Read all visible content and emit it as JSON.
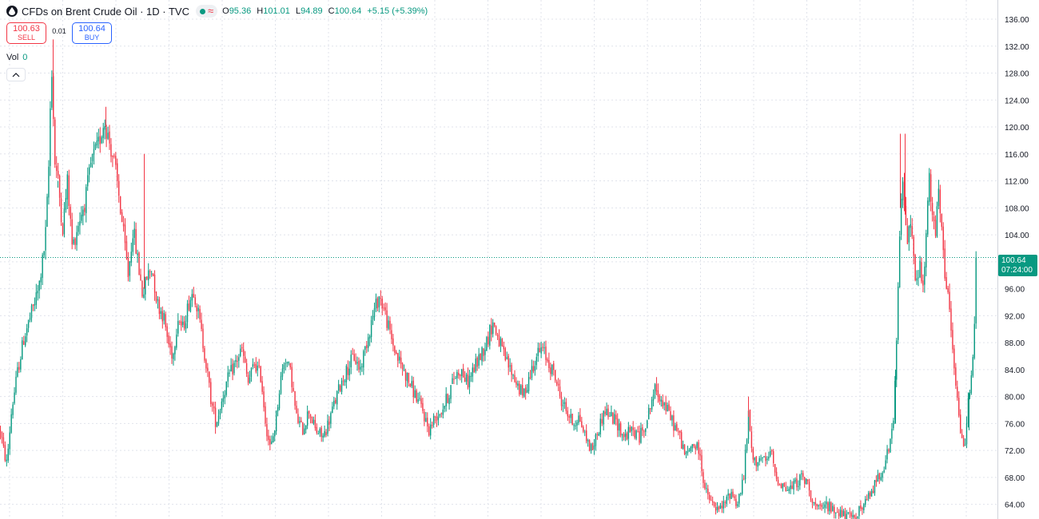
{
  "header": {
    "symbol": "CFDs on Brent Crude Oil · 1D · TVC",
    "ohlc": {
      "o_label": "O",
      "o": "95.36",
      "h_label": "H",
      "h": "101.01",
      "l_label": "L",
      "l": "94.89",
      "c_label": "C",
      "c": "100.64",
      "change": "+5.15 (+5.39%)"
    }
  },
  "trade": {
    "sell_price": "100.63",
    "sell_label": "SELL",
    "spread": "0.01",
    "buy_price": "100.64",
    "buy_label": "BUY"
  },
  "volume": {
    "label": "Vol",
    "value": "0"
  },
  "last_price": {
    "value": "100.64",
    "countdown": "07:24:00"
  },
  "colors": {
    "up": "#089981",
    "down": "#f23645",
    "grid": "#e0e3eb",
    "price_line": "#089981"
  },
  "chart_data": {
    "type": "candlestick",
    "ylim": [
      62,
      138
    ],
    "y_ticks": [
      "64.00",
      "68.00",
      "72.00",
      "76.00",
      "80.00",
      "84.00",
      "88.00",
      "92.00",
      "96.00",
      "100.00",
      "104.00",
      "108.00",
      "112.00",
      "116.00",
      "120.00",
      "124.00",
      "128.00",
      "132.00",
      "136.00"
    ],
    "last_close": 100.64,
    "close_path": [
      [
        0,
        75
      ],
      [
        4,
        72
      ],
      [
        8,
        70
      ],
      [
        14,
        78
      ],
      [
        22,
        84
      ],
      [
        30,
        89
      ],
      [
        38,
        92
      ],
      [
        48,
        96
      ],
      [
        56,
        103
      ],
      [
        60,
        112
      ],
      [
        64,
        130
      ],
      [
        68,
        115
      ],
      [
        72,
        112
      ],
      [
        78,
        105
      ],
      [
        84,
        112
      ],
      [
        90,
        102
      ],
      [
        98,
        106
      ],
      [
        106,
        109
      ],
      [
        114,
        115
      ],
      [
        122,
        117
      ],
      [
        130,
        121
      ],
      [
        136,
        118
      ],
      [
        142,
        115
      ],
      [
        148,
        110
      ],
      [
        154,
        104
      ],
      [
        160,
        98
      ],
      [
        166,
        105
      ],
      [
        172,
        100
      ],
      [
        178,
        95
      ],
      [
        184,
        98
      ],
      [
        190,
        99
      ],
      [
        196,
        94
      ],
      [
        204,
        92
      ],
      [
        210,
        88
      ],
      [
        216,
        86
      ],
      [
        222,
        92
      ],
      [
        228,
        90
      ],
      [
        236,
        94
      ],
      [
        242,
        96
      ],
      [
        248,
        92
      ],
      [
        256,
        86
      ],
      [
        264,
        79
      ],
      [
        270,
        76
      ],
      [
        278,
        80
      ],
      [
        286,
        83
      ],
      [
        294,
        85
      ],
      [
        302,
        87
      ],
      [
        310,
        82
      ],
      [
        318,
        85
      ],
      [
        326,
        83
      ],
      [
        332,
        76
      ],
      [
        338,
        72
      ],
      [
        344,
        76
      ],
      [
        350,
        82
      ],
      [
        356,
        86
      ],
      [
        364,
        83
      ],
      [
        370,
        77
      ],
      [
        378,
        75
      ],
      [
        386,
        78
      ],
      [
        394,
        75
      ],
      [
        404,
        74
      ],
      [
        410,
        76
      ],
      [
        418,
        79
      ],
      [
        426,
        82
      ],
      [
        434,
        84
      ],
      [
        442,
        86
      ],
      [
        450,
        84
      ],
      [
        458,
        88
      ],
      [
        466,
        92
      ],
      [
        474,
        95
      ],
      [
        480,
        93
      ],
      [
        488,
        89
      ],
      [
        496,
        86
      ],
      [
        504,
        84
      ],
      [
        512,
        82
      ],
      [
        520,
        80
      ],
      [
        528,
        78
      ],
      [
        536,
        75
      ],
      [
        544,
        77
      ],
      [
        552,
        78
      ],
      [
        560,
        80
      ],
      [
        568,
        83
      ],
      [
        576,
        84
      ],
      [
        584,
        82
      ],
      [
        592,
        84
      ],
      [
        600,
        86
      ],
      [
        608,
        88
      ],
      [
        616,
        91
      ],
      [
        622,
        89
      ],
      [
        630,
        86
      ],
      [
        638,
        84
      ],
      [
        646,
        82
      ],
      [
        654,
        80
      ],
      [
        662,
        83
      ],
      [
        670,
        86
      ],
      [
        678,
        87
      ],
      [
        686,
        85
      ],
      [
        694,
        83
      ],
      [
        700,
        80
      ],
      [
        708,
        78
      ],
      [
        716,
        76
      ],
      [
        724,
        77
      ],
      [
        732,
        74
      ],
      [
        740,
        72
      ],
      [
        748,
        75
      ],
      [
        756,
        78
      ],
      [
        764,
        77
      ],
      [
        772,
        76
      ],
      [
        780,
        74
      ],
      [
        790,
        75
      ],
      [
        800,
        74
      ],
      [
        810,
        77
      ],
      [
        818,
        81
      ],
      [
        826,
        80
      ],
      [
        834,
        78
      ],
      [
        842,
        76
      ],
      [
        850,
        74
      ],
      [
        858,
        71
      ],
      [
        866,
        73
      ],
      [
        874,
        72
      ],
      [
        882,
        66
      ],
      [
        890,
        64
      ],
      [
        898,
        63
      ],
      [
        906,
        64
      ],
      [
        914,
        66
      ],
      [
        922,
        64
      ],
      [
        930,
        68
      ],
      [
        936,
        77
      ],
      [
        942,
        70
      ],
      [
        950,
        71
      ],
      [
        958,
        70
      ],
      [
        964,
        72
      ],
      [
        970,
        68
      ],
      [
        978,
        67
      ],
      [
        986,
        66
      ],
      [
        994,
        67
      ],
      [
        1002,
        68
      ],
      [
        1010,
        67
      ],
      [
        1018,
        64
      ],
      [
        1026,
        63
      ],
      [
        1034,
        64
      ],
      [
        1042,
        63
      ],
      [
        1050,
        63
      ],
      [
        1058,
        62
      ],
      [
        1066,
        62
      ],
      [
        1074,
        63
      ],
      [
        1082,
        64
      ],
      [
        1090,
        66
      ],
      [
        1098,
        68
      ],
      [
        1106,
        70
      ],
      [
        1114,
        73
      ],
      [
        1118,
        78
      ],
      [
        1122,
        90
      ],
      [
        1126,
        108
      ],
      [
        1130,
        112
      ],
      [
        1134,
        102
      ],
      [
        1138,
        108
      ],
      [
        1142,
        101
      ],
      [
        1146,
        96
      ],
      [
        1150,
        100
      ],
      [
        1154,
        95
      ],
      [
        1158,
        103
      ],
      [
        1162,
        112
      ],
      [
        1166,
        107
      ],
      [
        1170,
        104
      ],
      [
        1174,
        110
      ],
      [
        1178,
        104
      ],
      [
        1182,
        97
      ],
      [
        1186,
        96
      ],
      [
        1190,
        88
      ],
      [
        1194,
        84
      ],
      [
        1198,
        78
      ],
      [
        1202,
        74
      ],
      [
        1206,
        72
      ],
      [
        1210,
        78
      ],
      [
        1214,
        83
      ],
      [
        1218,
        88
      ],
      [
        1222,
        100.64
      ]
    ],
    "spikes": [
      [
        66,
        133
      ],
      [
        72,
        111
      ],
      [
        132,
        123
      ],
      [
        180,
        116
      ],
      [
        1126,
        119
      ],
      [
        1132,
        119
      ],
      [
        936,
        80
      ],
      [
        1120,
        76
      ],
      [
        1212,
        75
      ]
    ]
  }
}
